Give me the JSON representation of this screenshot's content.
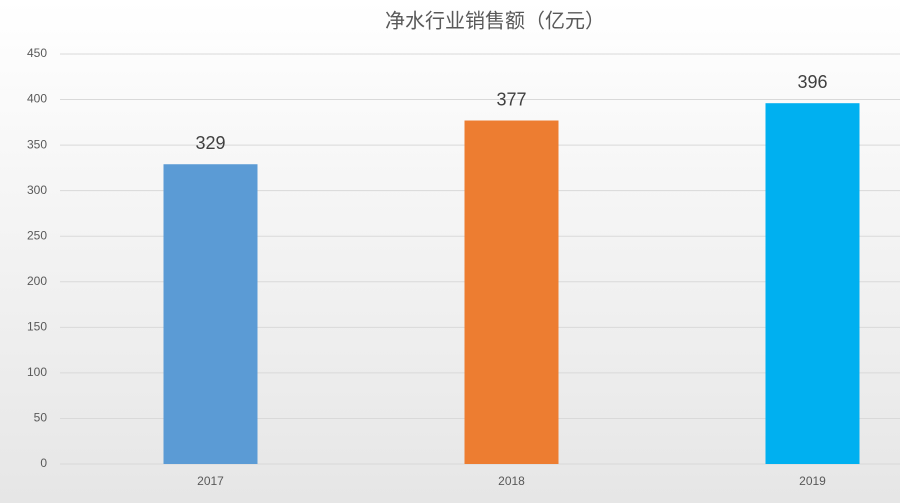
{
  "chart_data": {
    "type": "bar",
    "title": "净水行业销售额（亿元）",
    "categories": [
      "2017",
      "2018",
      "2019"
    ],
    "values": [
      329,
      377,
      396
    ],
    "colors": [
      "#5b9bd5",
      "#ed7d31",
      "#00b0f0"
    ],
    "ylim": [
      0,
      450
    ],
    "yticks": [
      0,
      50,
      100,
      150,
      200,
      250,
      300,
      350,
      400,
      450
    ],
    "grid": true
  }
}
